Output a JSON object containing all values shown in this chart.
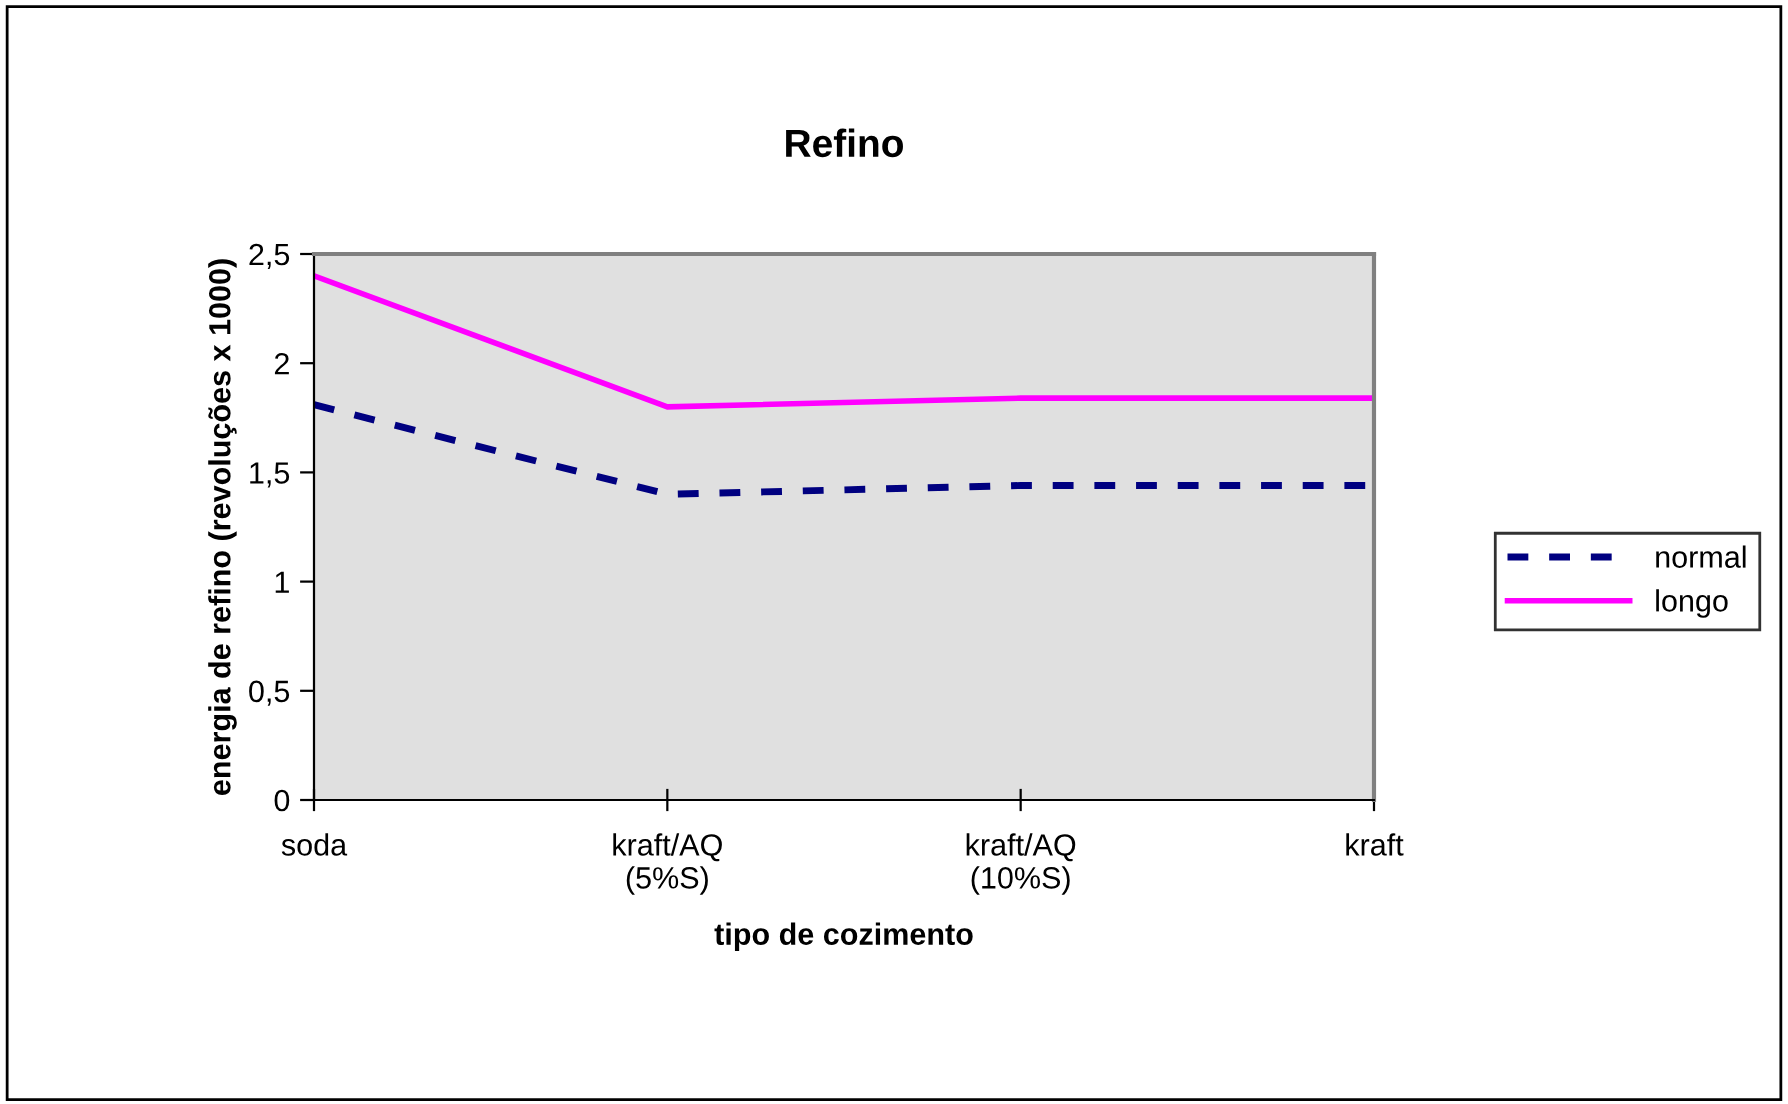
{
  "chart_data": {
    "type": "line",
    "title": "Refino",
    "xlabel": "tipo de cozimento",
    "ylabel": "energia de refino (revoluções x 1000)",
    "categories": [
      "soda",
      "kraft/AQ\n(5%S)",
      "kraft/AQ\n(10%S)",
      "kraft"
    ],
    "series": [
      {
        "name": "normal",
        "color": "#000080",
        "values": [
          1.81,
          1.4,
          1.44,
          1.44
        ],
        "line_style": "dashed"
      },
      {
        "name": "longo",
        "color": "#ff00ff",
        "values": [
          2.4,
          1.8,
          1.84,
          1.84
        ],
        "line_style": "solid"
      }
    ],
    "ylim": [
      0,
      2.5
    ],
    "yticks": [
      {
        "value": 0,
        "label": "0"
      },
      {
        "value": 0.5,
        "label": "0,5"
      },
      {
        "value": 1,
        "label": "1"
      },
      {
        "value": 1.5,
        "label": "1,5"
      },
      {
        "value": 2,
        "label": "2"
      },
      {
        "value": 2.5,
        "label": "2,5"
      }
    ],
    "grid": false,
    "legend": "right",
    "marker": "none"
  }
}
